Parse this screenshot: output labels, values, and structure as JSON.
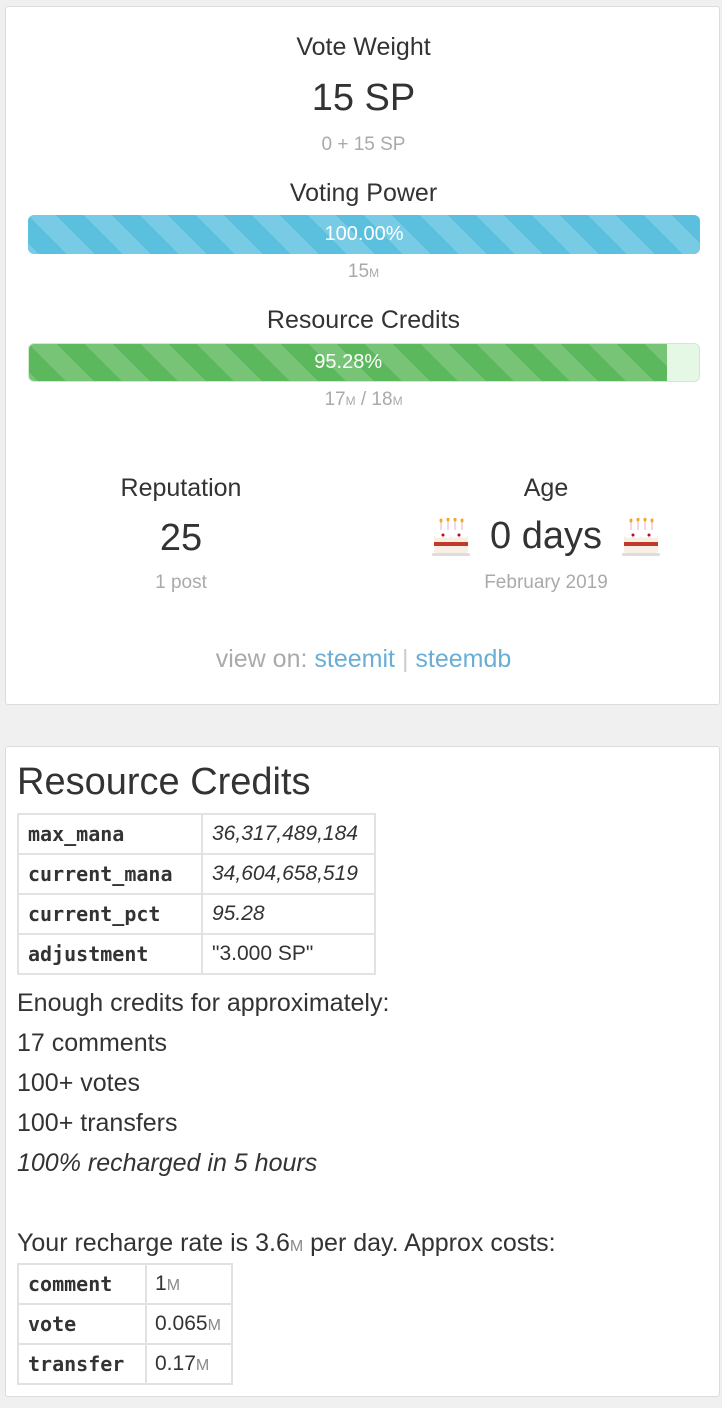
{
  "vote_weight": {
    "heading": "Vote Weight",
    "value": "15 SP",
    "breakdown": "0 + 15 SP"
  },
  "voting_power": {
    "heading": "Voting Power",
    "percent_label": "100.00%",
    "fill_percent": 100,
    "sub_value": "15",
    "sub_unit": "M"
  },
  "resource_credits_bar": {
    "heading": "Resource Credits",
    "percent_label": "95.28%",
    "fill_percent": 95.28,
    "current": "17",
    "current_unit": "M",
    "separator": "/",
    "max": "18",
    "max_unit": "M"
  },
  "reputation": {
    "heading": "Reputation",
    "value": "25",
    "sub": "1 post"
  },
  "age": {
    "heading": "Age",
    "value": "0 days",
    "sub": "February 2019",
    "icon": "birthday-cake-icon"
  },
  "view_on": {
    "prefix": "view on:",
    "link1": "steemit",
    "divider": "|",
    "link2": "steemdb"
  },
  "rc_panel": {
    "title": "Resource Credits",
    "table": [
      {
        "key": "max_mana",
        "value": "36,317,489,184"
      },
      {
        "key": "current_mana",
        "value": "34,604,658,519"
      },
      {
        "key": "current_pct",
        "value": "95.28"
      },
      {
        "key": "adjustment",
        "value": "\"3.000 SP\""
      }
    ],
    "enough_text": "Enough credits for approximately:",
    "comments": "17 comments",
    "votes": "100+ votes",
    "transfers": "100+ transfers",
    "recharged": "100% recharged in 5 hours",
    "recharge_prefix": "Your recharge rate is 3.6",
    "recharge_unit": "M",
    "recharge_suffix": " per day. Approx costs:",
    "costs": [
      {
        "key": "comment",
        "value": "1",
        "unit": "M"
      },
      {
        "key": "vote",
        "value": "0.065",
        "unit": "M"
      },
      {
        "key": "transfer",
        "value": "0.17",
        "unit": "M"
      }
    ]
  },
  "colors": {
    "voting_bar": "#5bc0de",
    "rc_bar": "#5cb85c",
    "link": "#6aaed6"
  }
}
